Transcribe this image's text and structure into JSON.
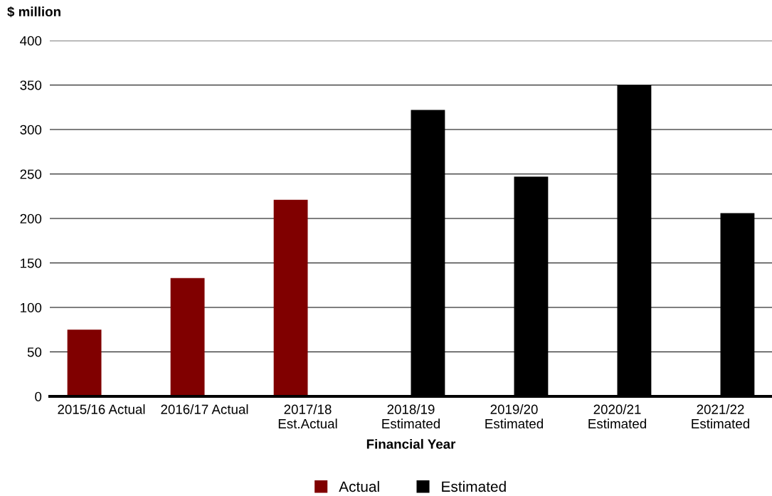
{
  "chart_data": {
    "type": "bar",
    "ylabel": "$ million",
    "xlabel": "Financial Year",
    "categories": [
      "2015/16 Actual",
      "2016/17 Actual",
      "2017/18\nEst.Actual",
      "2018/19\nEstimated",
      "2019/20\nEstimated",
      "2020/21\nEstimated",
      "2021/22\nEstimated"
    ],
    "series": [
      {
        "name": "Actual",
        "color": "#800000",
        "values": [
          75,
          133,
          221,
          null,
          null,
          null,
          null
        ]
      },
      {
        "name": "Estimated",
        "color": "#000000",
        "values": [
          null,
          null,
          null,
          322,
          247,
          350,
          206
        ]
      }
    ],
    "ylim": [
      0,
      400
    ],
    "yticks": [
      0,
      50,
      100,
      150,
      200,
      250,
      300,
      350,
      400
    ],
    "grid": "y",
    "legend": "bottom"
  }
}
